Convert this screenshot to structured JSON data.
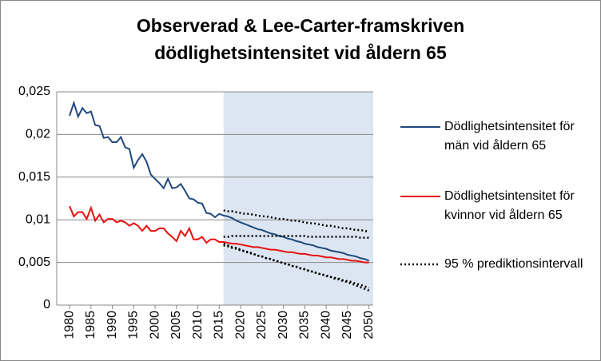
{
  "chart_data": {
    "type": "line",
    "title": "Observerad & Lee-Carter-framskriven dödlighetsintensitet vid åldern 65",
    "x": [
      1980,
      1981,
      1982,
      1983,
      1984,
      1985,
      1986,
      1987,
      1988,
      1989,
      1990,
      1991,
      1992,
      1993,
      1994,
      1995,
      1996,
      1997,
      1998,
      1999,
      2000,
      2001,
      2002,
      2003,
      2004,
      2005,
      2006,
      2007,
      2008,
      2009,
      2010,
      2011,
      2012,
      2013,
      2014,
      2015,
      2016,
      2017,
      2018,
      2019,
      2020,
      2021,
      2022,
      2023,
      2024,
      2025,
      2026,
      2027,
      2028,
      2029,
      2030,
      2031,
      2032,
      2033,
      2034,
      2035,
      2036,
      2037,
      2038,
      2039,
      2040,
      2041,
      2042,
      2043,
      2044,
      2045,
      2046,
      2047,
      2048,
      2049,
      2050
    ],
    "xlim": [
      1977,
      2051
    ],
    "xticks": [
      1980,
      1985,
      1990,
      1995,
      2000,
      2005,
      2010,
      2015,
      2020,
      2025,
      2030,
      2035,
      2040,
      2045,
      2050
    ],
    "ylim": [
      0,
      0.025
    ],
    "yticks": [
      0,
      {
        "value": 0.005,
        "label": "0,005"
      },
      {
        "value": 0.01,
        "label": "0,01"
      },
      {
        "value": 0.015,
        "label": "0,015"
      },
      {
        "value": 0.02,
        "label": "0,02"
      },
      {
        "value": 0.025,
        "label": "0,025"
      }
    ],
    "grid": true,
    "shade_from": 2016,
    "shade_color": "#dce6f2",
    "legend": "right",
    "series": [
      {
        "name": "Dödlighetsintensitet för män vid åldern 65",
        "color": "#1f497d",
        "values": [
          0.0222,
          0.0237,
          0.0221,
          0.0231,
          0.0225,
          0.0227,
          0.0211,
          0.021,
          0.0196,
          0.0197,
          0.0191,
          0.0191,
          0.0197,
          0.0185,
          0.0183,
          0.0161,
          0.017,
          0.0177,
          0.0168,
          0.0153,
          0.0148,
          0.0143,
          0.0137,
          0.0148,
          0.0137,
          0.0138,
          0.0142,
          0.0134,
          0.0125,
          0.0124,
          0.012,
          0.0119,
          0.0108,
          0.0107,
          0.0103,
          0.0107,
          0.0105,
          0.0104,
          0.0102,
          0.0099,
          0.0097,
          0.0095,
          0.0093,
          0.0091,
          0.0089,
          0.0088,
          0.0086,
          0.0084,
          0.0083,
          0.0081,
          0.008,
          0.0078,
          0.0077,
          0.0075,
          0.0074,
          0.0072,
          0.0071,
          0.007,
          0.0068,
          0.0067,
          0.0066,
          0.0064,
          0.0063,
          0.0062,
          0.0061,
          0.0059,
          0.0058,
          0.0057,
          0.0055,
          0.0054,
          0.0052
        ]
      },
      {
        "name": "Dödlighetsintensitet för kvinnor vid åldern 65",
        "color": "#e8110f",
        "values": [
          0.0116,
          0.0104,
          0.0109,
          0.0109,
          0.0101,
          0.0114,
          0.0099,
          0.0106,
          0.0097,
          0.0101,
          0.0101,
          0.0097,
          0.0099,
          0.0097,
          0.0093,
          0.0096,
          0.0093,
          0.0087,
          0.0093,
          0.0087,
          0.0087,
          0.009,
          0.009,
          0.0084,
          0.008,
          0.0075,
          0.0087,
          0.0081,
          0.009,
          0.0077,
          0.0077,
          0.008,
          0.0073,
          0.0077,
          0.0077,
          0.0074,
          0.0074,
          0.0073,
          0.0072,
          0.0072,
          0.0071,
          0.007,
          0.0069,
          0.0068,
          0.0068,
          0.0067,
          0.0066,
          0.0065,
          0.0065,
          0.0064,
          0.0063,
          0.0062,
          0.0062,
          0.0061,
          0.006,
          0.006,
          0.0059,
          0.0058,
          0.0058,
          0.0057,
          0.0056,
          0.0056,
          0.0055,
          0.0054,
          0.0054,
          0.0053,
          0.0052,
          0.0052,
          0.0051,
          0.005,
          0.005
        ]
      },
      {
        "name": "95 % prediktionsintervall",
        "color": "#000000",
        "dash": "dotted",
        "lines": [
          [
            null,
            null,
            null,
            null,
            null,
            null,
            null,
            null,
            null,
            null,
            null,
            null,
            null,
            null,
            null,
            null,
            null,
            null,
            null,
            null,
            null,
            null,
            null,
            null,
            null,
            null,
            null,
            null,
            null,
            null,
            null,
            null,
            null,
            null,
            null,
            null,
            0.0111,
            0.011,
            0.011,
            0.0109,
            0.0108,
            0.0107,
            0.0107,
            0.0106,
            0.0105,
            0.0104,
            0.0104,
            0.0103,
            0.0102,
            0.0101,
            0.0101,
            0.01,
            0.0099,
            0.0099,
            0.0098,
            0.0097,
            0.0096,
            0.0096,
            0.0095,
            0.0094,
            0.0093,
            0.0093,
            0.0092,
            0.0091,
            0.009,
            0.009,
            0.0089,
            0.0088,
            0.0088,
            0.0087,
            0.0086
          ],
          [
            null,
            null,
            null,
            null,
            null,
            null,
            null,
            null,
            null,
            null,
            null,
            null,
            null,
            null,
            null,
            null,
            null,
            null,
            null,
            null,
            null,
            null,
            null,
            null,
            null,
            null,
            null,
            null,
            null,
            null,
            null,
            null,
            null,
            null,
            null,
            null,
            0.008,
            0.008,
            0.0081,
            0.0081,
            0.0081,
            0.0081,
            0.0081,
            0.0081,
            0.0081,
            0.0081,
            0.0081,
            0.0081,
            0.0081,
            0.0081,
            0.0081,
            0.0081,
            0.0081,
            0.0081,
            0.0081,
            0.0081,
            0.008,
            0.008,
            0.008,
            0.008,
            0.008,
            0.008,
            0.008,
            0.008,
            0.008,
            0.008,
            0.008,
            0.008,
            0.0079,
            0.0079,
            0.0079
          ],
          [
            null,
            null,
            null,
            null,
            null,
            null,
            null,
            null,
            null,
            null,
            null,
            null,
            null,
            null,
            null,
            null,
            null,
            null,
            null,
            null,
            null,
            null,
            null,
            null,
            null,
            null,
            null,
            null,
            null,
            null,
            null,
            null,
            null,
            null,
            null,
            null,
            0.0072,
            0.007,
            0.0068,
            0.0067,
            0.0065,
            0.0063,
            0.0062,
            0.006,
            0.0058,
            0.0057,
            0.0055,
            0.0054,
            0.0052,
            0.0051,
            0.0049,
            0.0048,
            0.0046,
            0.0045,
            0.0043,
            0.0042,
            0.004,
            0.0039,
            0.0037,
            0.0036,
            0.0034,
            0.0033,
            0.0031,
            0.003,
            0.0028,
            0.0027,
            0.0025,
            0.0023,
            0.0021,
            0.0019,
            0.0017
          ],
          [
            null,
            null,
            null,
            null,
            null,
            null,
            null,
            null,
            null,
            null,
            null,
            null,
            null,
            null,
            null,
            null,
            null,
            null,
            null,
            null,
            null,
            null,
            null,
            null,
            null,
            null,
            null,
            null,
            null,
            null,
            null,
            null,
            null,
            null,
            null,
            null,
            0.007,
            0.0069,
            0.0067,
            0.0066,
            0.0064,
            0.0063,
            0.0061,
            0.006,
            0.0058,
            0.0057,
            0.0055,
            0.0054,
            0.0052,
            0.0051,
            0.0049,
            0.0048,
            0.0046,
            0.0045,
            0.0043,
            0.0042,
            0.004,
            0.0039,
            0.0037,
            0.0036,
            0.0035,
            0.0033,
            0.0032,
            0.0031,
            0.0029,
            0.0028,
            0.0027,
            0.0025,
            0.0024,
            0.0022,
            0.002
          ]
        ]
      }
    ]
  }
}
